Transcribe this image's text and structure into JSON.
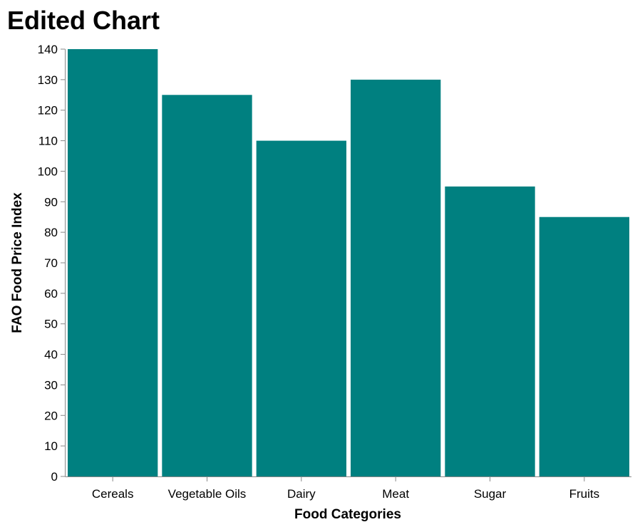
{
  "colors": {
    "bar": "#008080",
    "axis": "#888888"
  },
  "chart_data": {
    "type": "bar",
    "title": "Edited Chart",
    "xlabel": "Food Categories",
    "ylabel": "FAO Food Price Index",
    "categories": [
      "Cereals",
      "Vegetable Oils",
      "Dairy",
      "Meat",
      "Sugar",
      "Fruits"
    ],
    "values": [
      140,
      125,
      110,
      130,
      95,
      85
    ],
    "ylim": [
      0,
      140
    ],
    "yticks": [
      "0",
      "10",
      "20",
      "30",
      "40",
      "50",
      "60",
      "70",
      "80",
      "90",
      "100",
      "110",
      "120",
      "130",
      "140"
    ],
    "grid": false,
    "legend": "none"
  }
}
